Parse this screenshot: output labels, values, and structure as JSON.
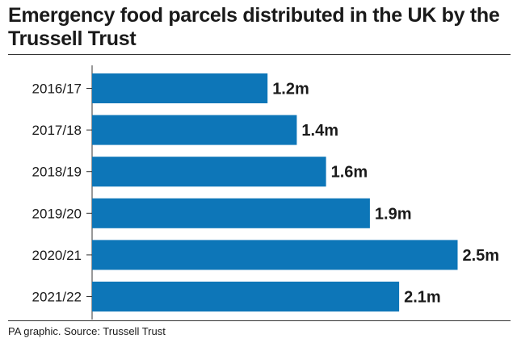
{
  "title": "Emergency food parcels distributed in the UK by the Trussell Trust",
  "source": "PA graphic. Source: Trussell Trust",
  "colors": {
    "bar": "#0d76b8"
  },
  "chart_data": {
    "type": "bar",
    "orientation": "horizontal",
    "title": "Emergency food parcels distributed in the UK by the Trussell Trust",
    "xlabel": "",
    "ylabel": "",
    "grid": false,
    "categories": [
      "2016/17",
      "2017/18",
      "2018/19",
      "2019/20",
      "2020/21",
      "2021/22"
    ],
    "values": [
      1.2,
      1.4,
      1.6,
      1.9,
      2.5,
      2.1
    ],
    "value_labels": [
      "1.2m",
      "1.4m",
      "1.6m",
      "1.9m",
      "2.5m",
      "2.1m"
    ],
    "units": "millions"
  }
}
